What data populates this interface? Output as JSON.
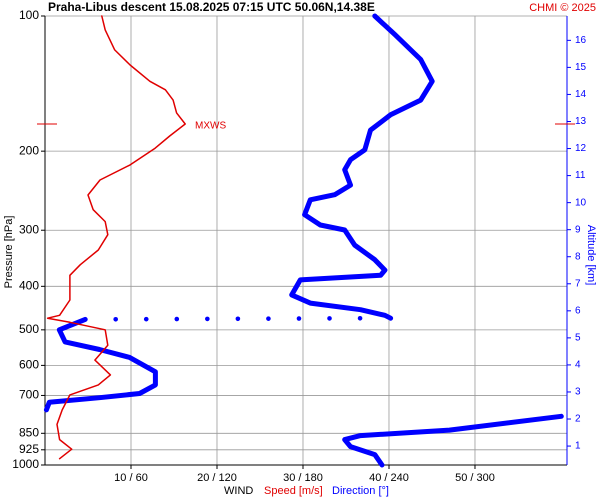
{
  "chart_data": {
    "type": "sounding-wind",
    "title": "Praha-Libus   descent   15.08.2025 07:15 UTC   50.06N,14.38E",
    "credit": "CHMI © 2025",
    "y_label": "Pressure [hPa]",
    "y2_label": "Altitude [km]",
    "x_label": "WIND",
    "x_label_speed": "Speed [m/s]",
    "x_label_direction": "Direction [°]",
    "ylim": [
      1000,
      100
    ],
    "log_scale": true,
    "yticks": [
      100,
      200,
      300,
      400,
      500,
      600,
      700,
      850,
      925,
      1000
    ],
    "y2lim": [
      0.3,
      16.9
    ],
    "y2ticks": [
      1,
      2,
      3,
      4,
      5,
      6,
      7,
      8,
      9,
      10,
      11,
      12,
      13,
      14,
      15,
      16
    ],
    "xlim": [
      0,
      60.7
    ],
    "x2lim": [
      0,
      364
    ],
    "xticks": [
      {
        "value": 10,
        "label": "10 / 60"
      },
      {
        "value": 20,
        "label": "20 / 120"
      },
      {
        "value": 30,
        "label": "30 / 180"
      },
      {
        "value": 40,
        "label": "40 / 240"
      },
      {
        "value": 50,
        "label": "50 / 300"
      }
    ],
    "grid": true,
    "mxws": {
      "label": "MXWS",
      "pressure": 174
    },
    "series": [
      {
        "name": "Speed",
        "color": "#e00000",
        "axis": "x",
        "pressure": [
          100,
          107.4,
          119,
          128.6,
          139.8,
          146,
          153.9,
          164.4,
          174,
          185,
          197,
          214.6,
          231.9,
          250.4,
          270,
          287,
          307,
          332,
          358,
          378,
          429,
          464,
          471,
          481,
          500,
          541,
          584,
          630,
          663,
          698,
          754,
          812,
          878,
          922,
          968
        ],
        "values": [
          6.6,
          7.0,
          8.1,
          9.9,
          12.2,
          14.0,
          14.9,
          15.3,
          16.3,
          14.5,
          12.8,
          9.9,
          6.4,
          5.0,
          5.6,
          7.0,
          7.3,
          6.2,
          4.1,
          2.9,
          2.9,
          1.7,
          0.3,
          2.9,
          7.0,
          7.3,
          5.8,
          7.6,
          6.2,
          2.9,
          2.0,
          1.4,
          1.7,
          3.1,
          1.7
        ]
      },
      {
        "name": "Direction",
        "color": "#0000ff",
        "axis": "x2",
        "pressure": [
          100,
          110,
          125,
          139.8,
          153.9,
          166,
          179.5,
          198.6,
          209,
          220,
          238,
          250,
          256.6,
          277,
          292,
          299.7,
          324,
          349,
          368,
          378,
          387,
          418,
          436,
          451,
          464,
          471,
          474,
          500,
          532,
          553,
          576,
          620,
          663,
          693,
          708,
          725,
          754,
          null,
          779,
          836,
          860,
          878,
          910,
          948,
          1000
        ],
        "values": [
          230,
          244,
          262,
          270,
          262,
          241,
          227,
          223,
          213,
          209,
          213,
          202,
          185,
          181,
          192,
          209,
          216,
          230,
          237,
          234,
          178,
          172,
          185,
          220,
          237,
          241,
          28,
          10,
          14,
          38,
          59,
          77,
          77,
          66,
          38,
          3,
          1,
          null,
          360,
          282,
          220,
          209,
          213,
          230,
          235
        ]
      }
    ]
  }
}
